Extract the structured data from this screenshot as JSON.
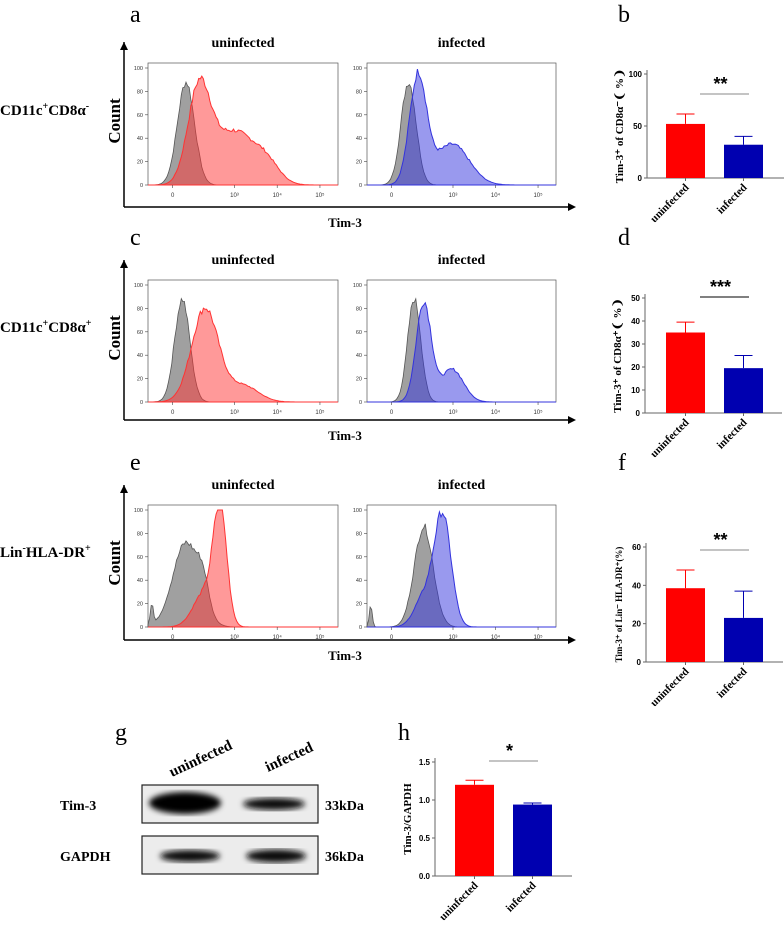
{
  "panel_labels": [
    "a",
    "b",
    "c",
    "d",
    "e",
    "f",
    "g",
    "h"
  ],
  "flow": {
    "count_label": "Count",
    "x_label": "Tim-3",
    "conditions": [
      "uninfected",
      "infected"
    ],
    "rows": [
      {
        "population": "CD11c",
        "sup1": "+",
        "mid": "CD8α",
        "sup2": "-"
      },
      {
        "population": "CD11c",
        "sup1": "+",
        "mid": "CD8α",
        "sup2": "+"
      },
      {
        "population": "Lin",
        "sup1": "-",
        "mid": "HLA-DR",
        "sup2": "+"
      }
    ],
    "y_ticks": [
      "0",
      "20",
      "40",
      "60",
      "80",
      "100"
    ],
    "x_ticks": [
      "0",
      "10³",
      "10⁴",
      "10⁵"
    ],
    "colors": {
      "control": "#808080",
      "uninfected": "#ff3333",
      "infected": "#3333dd"
    }
  },
  "chart_data": [
    {
      "type": "bar",
      "panel": "b",
      "ylabel": "Tim-3⁺ of CD8α⁻❨ %❩",
      "categories": [
        "uninfected",
        "infected"
      ],
      "values": [
        52,
        32
      ],
      "errors": [
        9.5,
        8
      ],
      "ylim": [
        0,
        100
      ],
      "yticks": [
        "0",
        "50",
        "100"
      ],
      "significance": "**",
      "colors": [
        "#ff0000",
        "#0000b0"
      ]
    },
    {
      "type": "bar",
      "panel": "d",
      "ylabel": "Tim-3⁺ of CD8α⁺❨ %❩",
      "categories": [
        "uninfected",
        "infected"
      ],
      "values": [
        35,
        19.5
      ],
      "errors": [
        4.5,
        5.5
      ],
      "ylim": [
        0,
        50
      ],
      "yticks": [
        "0",
        "10",
        "20",
        "30",
        "40",
        "50"
      ],
      "significance": "***",
      "colors": [
        "#ff0000",
        "#0000b0"
      ]
    },
    {
      "type": "bar",
      "panel": "f",
      "ylabel": "Tim-3⁺ of Lin⁻ HLA-DR⁺(%)",
      "categories": [
        "uninfected",
        "infected"
      ],
      "values": [
        38.5,
        23
      ],
      "errors": [
        9.5,
        14
      ],
      "ylim": [
        0,
        60
      ],
      "yticks": [
        "0",
        "20",
        "40",
        "60"
      ],
      "significance": "**",
      "colors": [
        "#ff0000",
        "#0000b0"
      ]
    },
    {
      "type": "bar",
      "panel": "h",
      "ylabel": "Tim-3/GAPDH",
      "categories": [
        "uninfected",
        "infected"
      ],
      "values": [
        1.2,
        0.94
      ],
      "errors": [
        0.06,
        0.02
      ],
      "ylim": [
        0,
        1.5
      ],
      "yticks": [
        "0.0",
        "0.5",
        "1.0",
        "1.5"
      ],
      "significance": "*",
      "colors": [
        "#ff0000",
        "#0000b0"
      ]
    }
  ],
  "western": {
    "lanes": [
      "uninfected",
      "infected"
    ],
    "bands": [
      {
        "name": "Tim-3",
        "size": "33kDa"
      },
      {
        "name": "GAPDH",
        "size": "36kDa"
      }
    ]
  }
}
